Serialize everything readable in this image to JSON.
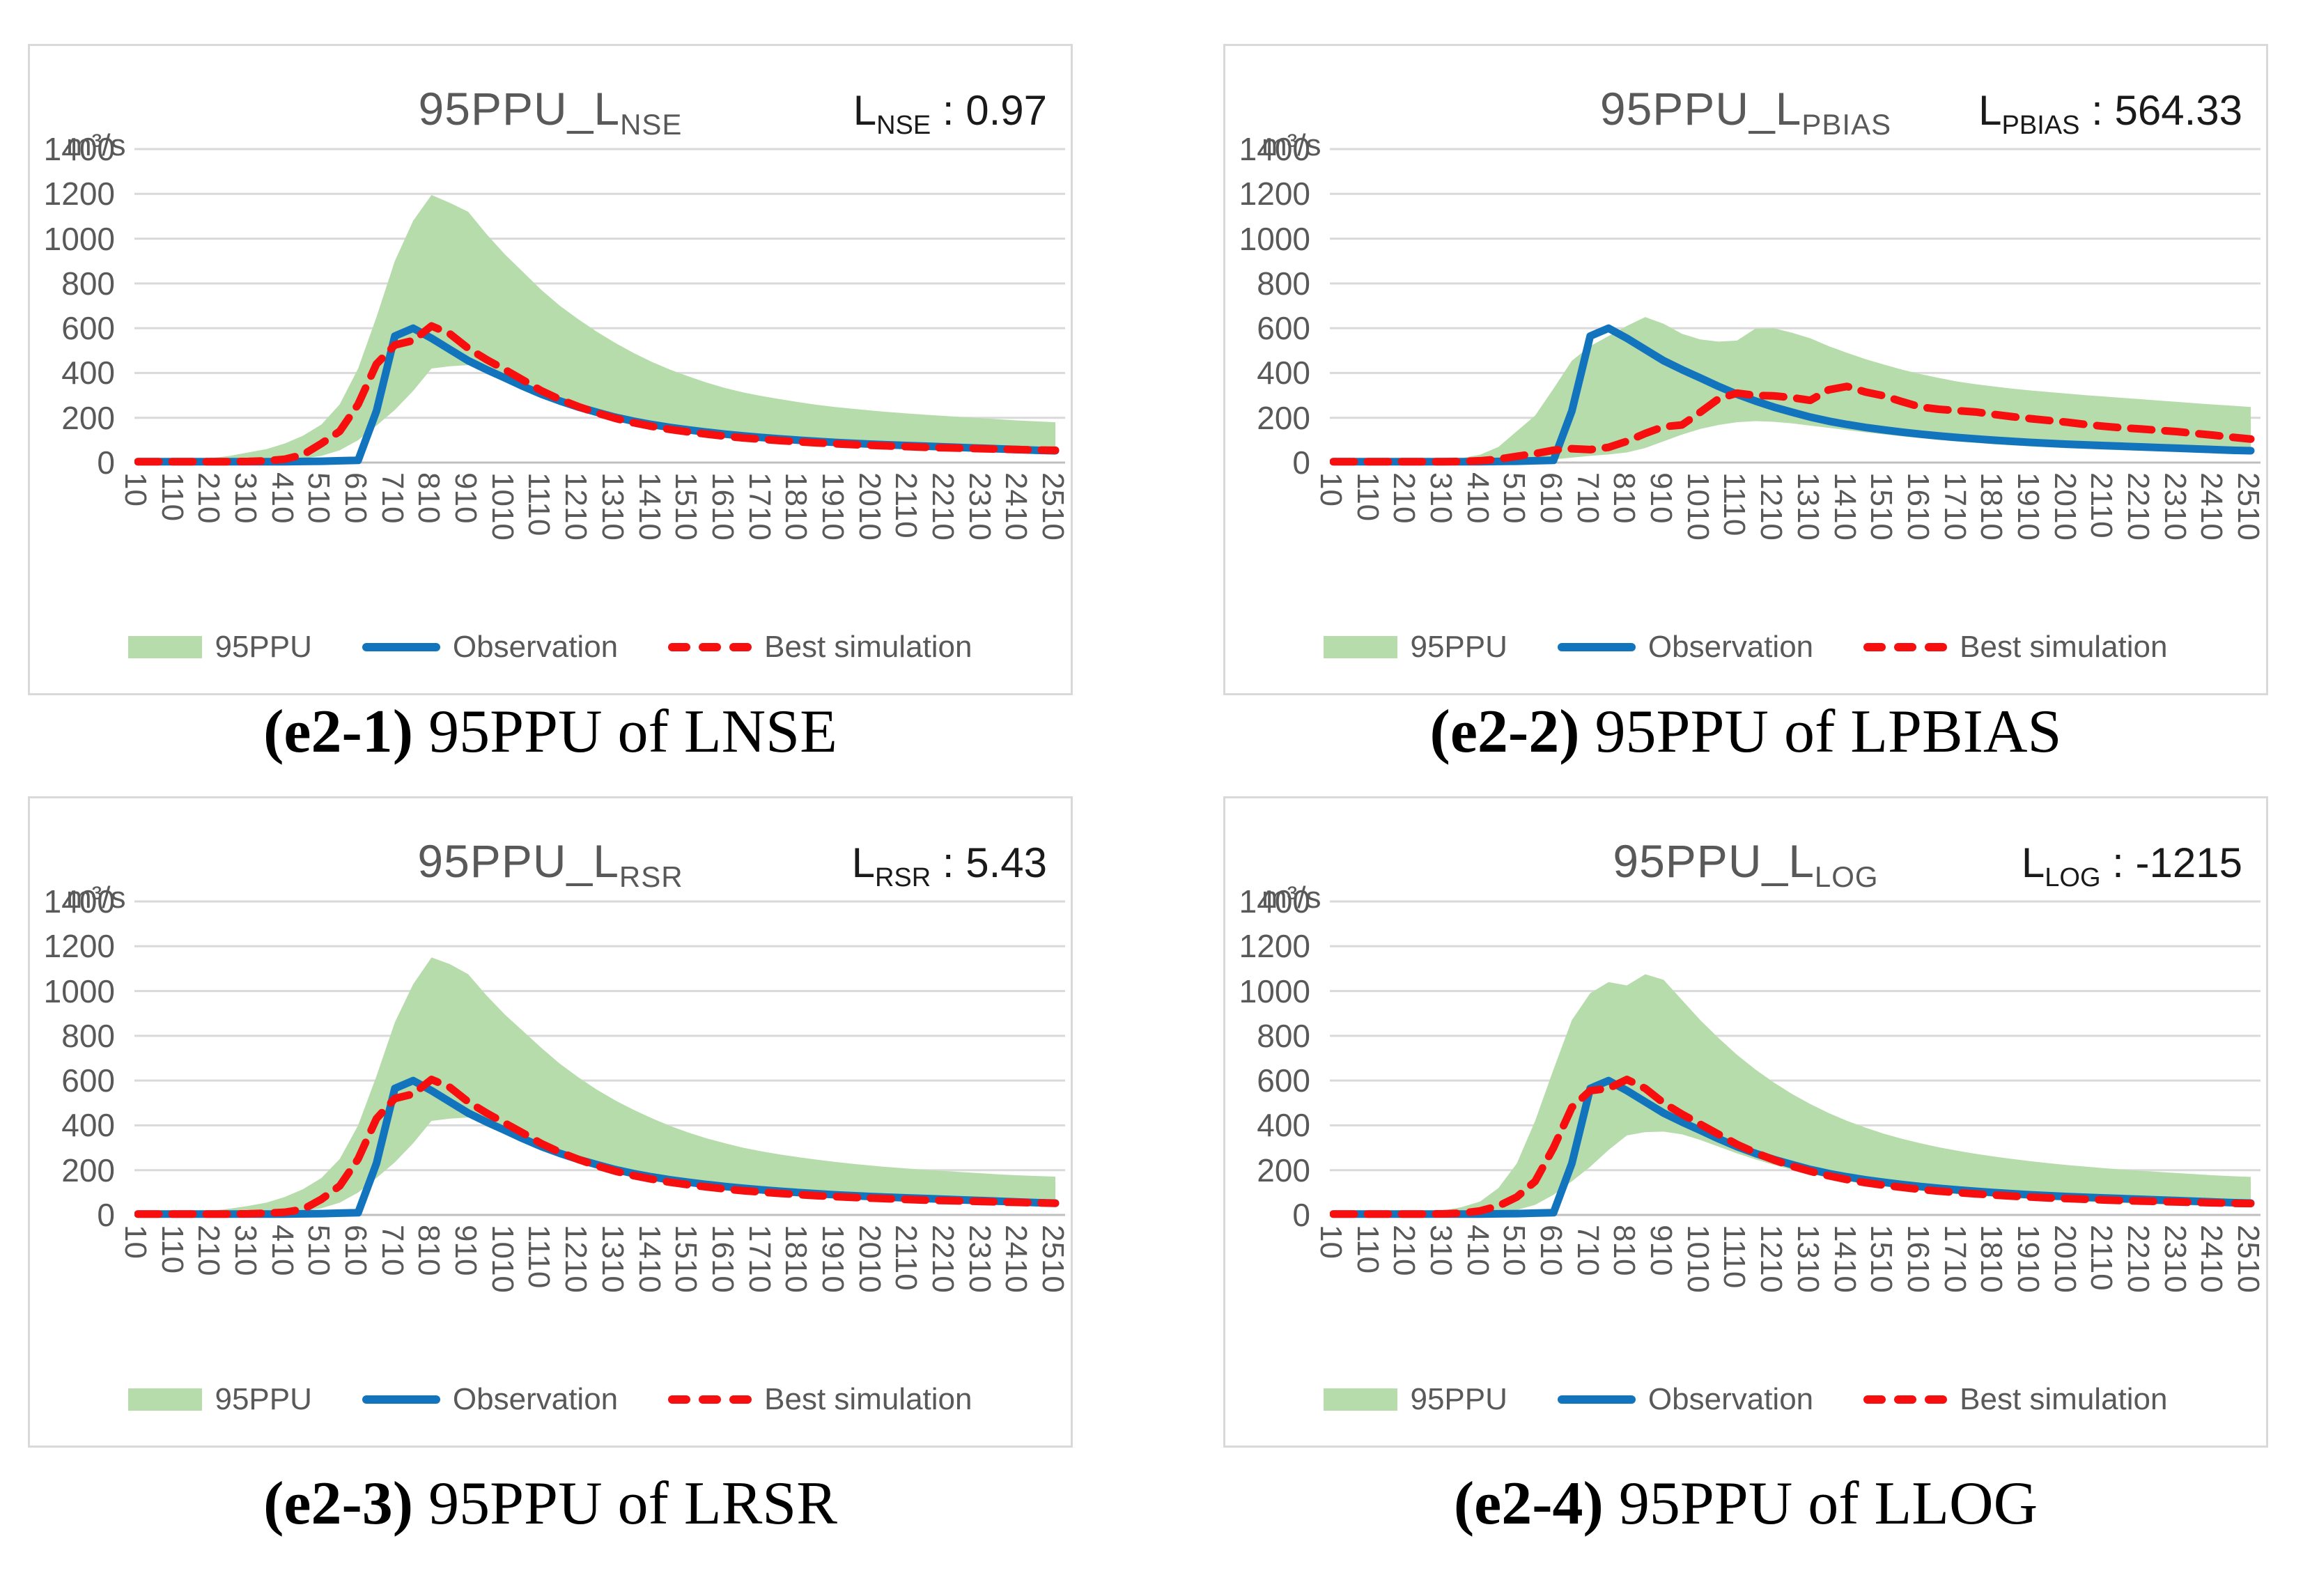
{
  "colors": {
    "band_green": "#b6dcab",
    "observation_blue": "#1274bd",
    "simulation_red": "#f70f0f",
    "gridline": "#d9d9d9",
    "axis_line": "#bfbfbf",
    "tick_text": "#595959",
    "title_text": "#595959",
    "stat_text": "#1a1a1a",
    "panel_border": "#d9d9d9",
    "caption_text": "#000000"
  },
  "chart_data": [
    {
      "type": "area",
      "title_main": "95PPU_L",
      "title_sub": "NSE",
      "stat_prefix": "L",
      "stat_sub": "NSE",
      "stat_sep": " : ",
      "stat_value": "0.97",
      "caption_bold": "(e2-1)",
      "caption_rest": " 95PPU of LNSE",
      "y_unit": "m³/s",
      "ylim": [
        0,
        1400
      ],
      "y_ticks": [
        0,
        200,
        400,
        600,
        800,
        1000,
        1200,
        1400
      ],
      "x_tick_labels": [
        10,
        110,
        210,
        310,
        410,
        510,
        610,
        710,
        810,
        910,
        1010,
        1110,
        1210,
        1310,
        1410,
        1510,
        1610,
        1710,
        1810,
        1910,
        2010,
        2110,
        2210,
        2310,
        2410,
        2510
      ],
      "legend": [
        "95PPU",
        "Observation",
        "Best simulation"
      ],
      "x": [
        10,
        60,
        110,
        160,
        210,
        260,
        310,
        360,
        410,
        460,
        510,
        560,
        610,
        660,
        710,
        760,
        810,
        860,
        910,
        960,
        1010,
        1060,
        1110,
        1160,
        1210,
        1260,
        1310,
        1360,
        1410,
        1460,
        1510,
        1560,
        1610,
        1660,
        1710,
        1760,
        1810,
        1860,
        1910,
        1960,
        2010,
        2060,
        2110,
        2160,
        2210,
        2260,
        2310,
        2360,
        2410,
        2460,
        2510
      ],
      "band_upper": [
        8,
        9,
        10,
        14,
        20,
        30,
        45,
        60,
        85,
        120,
        170,
        260,
        420,
        650,
        900,
        1080,
        1195,
        1160,
        1120,
        1020,
        930,
        850,
        770,
        700,
        640,
        585,
        535,
        490,
        450,
        415,
        385,
        357,
        333,
        313,
        297,
        283,
        270,
        258,
        248,
        240,
        232,
        225,
        219,
        213,
        208,
        203,
        198,
        193,
        188,
        184,
        180
      ],
      "band_lower": [
        2,
        2,
        2,
        2,
        2,
        2,
        2,
        5,
        10,
        18,
        30,
        55,
        100,
        165,
        235,
        320,
        420,
        430,
        435,
        420,
        390,
        345,
        300,
        268,
        240,
        215,
        193,
        175,
        158,
        143,
        131,
        120,
        111,
        103,
        96,
        90,
        84,
        79,
        74,
        70,
        66,
        62,
        59,
        56,
        53,
        50,
        47,
        44,
        41,
        38,
        35
      ],
      "observation": [
        4,
        4,
        4,
        4,
        4,
        4,
        4,
        4,
        4,
        5,
        6,
        8,
        10,
        230,
        565,
        600,
        555,
        505,
        455,
        415,
        378,
        340,
        305,
        275,
        248,
        225,
        203,
        185,
        170,
        157,
        146,
        136,
        127,
        119,
        112,
        106,
        100,
        95,
        90,
        86,
        82,
        79,
        76,
        73,
        70,
        67,
        64,
        61,
        58,
        55,
        53
      ],
      "best_simulation": [
        4,
        4,
        4,
        4,
        4,
        4,
        5,
        8,
        15,
        35,
        85,
        140,
        260,
        440,
        525,
        545,
        610,
        575,
        510,
        460,
        415,
        368,
        320,
        282,
        250,
        222,
        198,
        178,
        162,
        148,
        137,
        127,
        118,
        110,
        104,
        98,
        93,
        88,
        84,
        80,
        77,
        74,
        71,
        68,
        66,
        64,
        62,
        60,
        58,
        56,
        55
      ]
    },
    {
      "type": "area",
      "title_main": "95PPU_L",
      "title_sub": "PBIAS",
      "stat_prefix": "L",
      "stat_sub": "PBIAS",
      "stat_sep": " : ",
      "stat_value": "564.33",
      "caption_bold": "(e2-2)",
      "caption_rest": " 95PPU of LPBIAS",
      "y_unit": "m³/s",
      "ylim": [
        0,
        1400
      ],
      "y_ticks": [
        0,
        200,
        400,
        600,
        800,
        1000,
        1200,
        1400
      ],
      "x_tick_labels": [
        10,
        110,
        210,
        310,
        410,
        510,
        610,
        710,
        810,
        910,
        1010,
        1110,
        1210,
        1310,
        1410,
        1510,
        1610,
        1710,
        1810,
        1910,
        2010,
        2110,
        2210,
        2310,
        2410,
        2510
      ],
      "legend": [
        "95PPU",
        "Observation",
        "Best simulation"
      ],
      "x": [
        10,
        60,
        110,
        160,
        210,
        260,
        310,
        360,
        410,
        460,
        510,
        560,
        610,
        660,
        710,
        760,
        810,
        860,
        910,
        960,
        1010,
        1060,
        1110,
        1160,
        1210,
        1260,
        1310,
        1360,
        1410,
        1460,
        1510,
        1560,
        1610,
        1660,
        1710,
        1760,
        1810,
        1860,
        1910,
        1960,
        2010,
        2060,
        2110,
        2160,
        2210,
        2260,
        2310,
        2360,
        2410,
        2460,
        2510
      ],
      "band_upper": [
        6,
        6,
        7,
        8,
        9,
        11,
        14,
        20,
        35,
        70,
        140,
        210,
        330,
        455,
        520,
        565,
        610,
        650,
        620,
        575,
        550,
        540,
        545,
        598,
        600,
        580,
        555,
        520,
        490,
        462,
        438,
        415,
        395,
        378,
        362,
        350,
        340,
        330,
        322,
        315,
        308,
        301,
        295,
        289,
        283,
        277,
        271,
        265,
        259,
        254,
        248
      ],
      "band_lower": [
        2,
        2,
        2,
        2,
        2,
        2,
        2,
        2,
        2,
        2,
        2,
        6,
        14,
        22,
        30,
        36,
        45,
        65,
        95,
        125,
        150,
        168,
        180,
        185,
        182,
        175,
        165,
        155,
        145,
        135,
        126,
        117,
        109,
        101,
        94,
        88,
        82,
        77,
        72,
        68,
        64,
        61,
        58,
        55,
        53,
        51,
        49,
        47,
        46,
        45,
        44
      ],
      "observation": [
        4,
        4,
        4,
        4,
        4,
        4,
        4,
        4,
        4,
        5,
        6,
        8,
        10,
        230,
        565,
        600,
        555,
        505,
        455,
        415,
        378,
        340,
        305,
        275,
        248,
        225,
        203,
        185,
        170,
        157,
        146,
        136,
        127,
        119,
        112,
        106,
        100,
        95,
        90,
        86,
        82,
        79,
        76,
        73,
        70,
        67,
        64,
        61,
        58,
        55,
        53
      ],
      "best_simulation": [
        4,
        4,
        4,
        4,
        4,
        4,
        4,
        5,
        8,
        15,
        28,
        40,
        55,
        62,
        58,
        68,
        95,
        130,
        160,
        168,
        225,
        285,
        310,
        300,
        298,
        290,
        278,
        325,
        340,
        315,
        298,
        272,
        248,
        238,
        232,
        226,
        215,
        205,
        196,
        188,
        180,
        170,
        162,
        155,
        150,
        144,
        138,
        130,
        122,
        113,
        105
      ]
    },
    {
      "type": "area",
      "title_main": "95PPU_L",
      "title_sub": "RSR",
      "stat_prefix": "L",
      "stat_sub": "RSR",
      "stat_sep": " : ",
      "stat_value": "5.43",
      "caption_bold": "(e2-3)",
      "caption_rest": " 95PPU of LRSR",
      "y_unit": "m³/s",
      "ylim": [
        0,
        1400
      ],
      "y_ticks": [
        0,
        200,
        400,
        600,
        800,
        1000,
        1200,
        1400
      ],
      "x_tick_labels": [
        10,
        110,
        210,
        310,
        410,
        510,
        610,
        710,
        810,
        910,
        1010,
        1110,
        1210,
        1310,
        1410,
        1510,
        1610,
        1710,
        1810,
        1910,
        2010,
        2110,
        2210,
        2310,
        2410,
        2510
      ],
      "legend": [
        "95PPU",
        "Observation",
        "Best simulation"
      ],
      "x": [
        10,
        60,
        110,
        160,
        210,
        260,
        310,
        360,
        410,
        460,
        510,
        560,
        610,
        660,
        710,
        760,
        810,
        860,
        910,
        960,
        1010,
        1060,
        1110,
        1160,
        1210,
        1260,
        1310,
        1360,
        1410,
        1460,
        1510,
        1560,
        1610,
        1660,
        1710,
        1760,
        1810,
        1860,
        1910,
        1960,
        2010,
        2060,
        2110,
        2160,
        2210,
        2260,
        2310,
        2360,
        2410,
        2460,
        2510
      ],
      "band_upper": [
        8,
        9,
        10,
        13,
        18,
        28,
        40,
        55,
        80,
        115,
        165,
        250,
        400,
        620,
        860,
        1030,
        1150,
        1120,
        1075,
        980,
        895,
        820,
        745,
        675,
        615,
        560,
        512,
        470,
        432,
        398,
        368,
        342,
        320,
        300,
        284,
        270,
        258,
        247,
        237,
        228,
        220,
        213,
        207,
        201,
        196,
        191,
        186,
        181,
        177,
        174,
        171
      ],
      "band_lower": [
        2,
        2,
        2,
        2,
        2,
        2,
        2,
        5,
        10,
        18,
        30,
        55,
        100,
        165,
        235,
        320,
        420,
        430,
        435,
        420,
        390,
        345,
        300,
        268,
        240,
        215,
        193,
        175,
        158,
        143,
        131,
        120,
        111,
        103,
        96,
        90,
        84,
        79,
        74,
        70,
        66,
        62,
        59,
        56,
        53,
        50,
        47,
        44,
        41,
        38,
        35
      ],
      "observation": [
        4,
        4,
        4,
        4,
        4,
        4,
        4,
        4,
        4,
        5,
        6,
        8,
        10,
        230,
        565,
        600,
        555,
        505,
        455,
        415,
        378,
        340,
        305,
        275,
        248,
        225,
        203,
        185,
        170,
        157,
        146,
        136,
        127,
        119,
        112,
        106,
        100,
        95,
        90,
        86,
        82,
        79,
        76,
        73,
        70,
        67,
        64,
        61,
        58,
        55,
        53
      ],
      "best_simulation": [
        4,
        4,
        4,
        4,
        4,
        4,
        5,
        8,
        12,
        25,
        70,
        130,
        250,
        430,
        520,
        540,
        605,
        570,
        505,
        455,
        410,
        365,
        318,
        280,
        248,
        220,
        196,
        176,
        160,
        146,
        135,
        125,
        116,
        108,
        102,
        96,
        91,
        86,
        82,
        78,
        75,
        72,
        69,
        66,
        64,
        62,
        60,
        58,
        56,
        54,
        52
      ]
    },
    {
      "type": "area",
      "title_main": "95PPU_L",
      "title_sub": "LOG",
      "stat_prefix": "L",
      "stat_sub": "LOG",
      "stat_sep": " : ",
      "stat_value": "-1215",
      "caption_bold": "(e2-4)",
      "caption_rest": " 95PPU of LLOG",
      "y_unit": "m³/s",
      "ylim": [
        0,
        1400
      ],
      "y_ticks": [
        0,
        200,
        400,
        600,
        800,
        1000,
        1200,
        1400
      ],
      "x_tick_labels": [
        10,
        110,
        210,
        310,
        410,
        510,
        610,
        710,
        810,
        910,
        1010,
        1110,
        1210,
        1310,
        1410,
        1510,
        1610,
        1710,
        1810,
        1910,
        2010,
        2110,
        2210,
        2310,
        2410,
        2510
      ],
      "legend": [
        "95PPU",
        "Observation",
        "Best simulation"
      ],
      "x": [
        10,
        60,
        110,
        160,
        210,
        260,
        310,
        360,
        410,
        460,
        510,
        560,
        610,
        660,
        710,
        760,
        810,
        860,
        910,
        960,
        1010,
        1060,
        1110,
        1160,
        1210,
        1260,
        1310,
        1360,
        1410,
        1460,
        1510,
        1560,
        1610,
        1660,
        1710,
        1760,
        1810,
        1860,
        1910,
        1960,
        2010,
        2060,
        2110,
        2160,
        2210,
        2260,
        2310,
        2360,
        2410,
        2460,
        2510
      ],
      "band_upper": [
        6,
        6,
        7,
        9,
        12,
        16,
        20,
        35,
        60,
        120,
        230,
        420,
        650,
        870,
        990,
        1040,
        1025,
        1075,
        1050,
        960,
        870,
        790,
        715,
        650,
        592,
        540,
        495,
        455,
        420,
        390,
        363,
        340,
        320,
        302,
        287,
        273,
        261,
        250,
        240,
        231,
        223,
        216,
        209,
        203,
        197,
        192,
        187,
        182,
        177,
        173,
        170
      ],
      "band_lower": [
        2,
        2,
        2,
        2,
        2,
        2,
        2,
        2,
        6,
        12,
        22,
        45,
        90,
        150,
        215,
        290,
        355,
        370,
        372,
        360,
        335,
        305,
        275,
        248,
        224,
        202,
        183,
        166,
        151,
        138,
        127,
        117,
        108,
        100,
        93,
        87,
        81,
        76,
        71,
        67,
        63,
        59,
        56,
        53,
        50,
        47,
        45,
        42,
        40,
        38,
        36
      ],
      "observation": [
        4,
        4,
        4,
        4,
        4,
        4,
        4,
        4,
        4,
        5,
        6,
        8,
        10,
        230,
        565,
        600,
        555,
        505,
        455,
        415,
        378,
        340,
        305,
        275,
        248,
        225,
        203,
        185,
        170,
        157,
        146,
        136,
        127,
        119,
        112,
        106,
        100,
        95,
        90,
        86,
        82,
        79,
        76,
        73,
        70,
        67,
        64,
        61,
        58,
        55,
        53
      ],
      "best_simulation": [
        4,
        4,
        4,
        4,
        4,
        4,
        5,
        8,
        18,
        40,
        80,
        150,
        300,
        480,
        555,
        565,
        605,
        565,
        500,
        450,
        405,
        360,
        315,
        278,
        246,
        218,
        195,
        175,
        158,
        144,
        133,
        123,
        114,
        106,
        100,
        94,
        89,
        84,
        80,
        76,
        73,
        70,
        67,
        64,
        62,
        60,
        58,
        56,
        54,
        52,
        51
      ]
    }
  ]
}
